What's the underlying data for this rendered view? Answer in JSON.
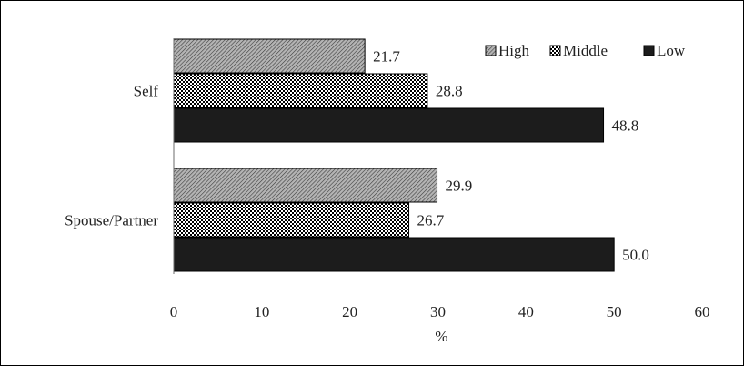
{
  "chart_data": {
    "type": "bar",
    "orientation": "horizontal",
    "categories": [
      "Self",
      "Spouse/Partner"
    ],
    "series": [
      {
        "name": "High",
        "values": [
          21.7,
          29.9
        ],
        "pattern": "diagonal-gray"
      },
      {
        "name": "Middle",
        "values": [
          28.8,
          26.7
        ],
        "pattern": "checker"
      },
      {
        "name": "Low",
        "values": [
          48.8,
          50.0
        ],
        "pattern": "solid-black"
      }
    ],
    "xlabel": "%",
    "xlim": [
      0,
      60
    ],
    "xticks": [
      "0",
      "10",
      "20",
      "30",
      "40",
      "50",
      "60"
    ],
    "data_labels": [
      [
        "21.7",
        "28.8",
        "48.8"
      ],
      [
        "29.9",
        "26.7",
        "50.0"
      ]
    ],
    "legend": {
      "placement": "top-right",
      "entries": [
        "High",
        "Middle",
        "Low"
      ]
    },
    "grid": false,
    "colors": {
      "High": "#8a8a8a",
      "Middle": "#000000",
      "Low": "#1c1c1c"
    }
  }
}
